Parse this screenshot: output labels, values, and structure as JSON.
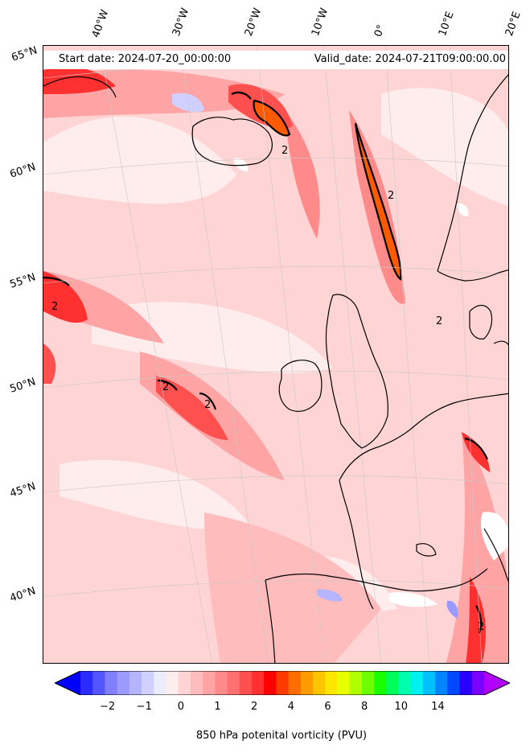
{
  "map": {
    "start_date": "Start date: 2024-07-20_00:00:00",
    "valid_date": "Valid_date: 2024-07-21T09:00:00.00",
    "longitude_labels": [
      "40°W",
      "30°W",
      "20°W",
      "10°W",
      "0°",
      "10°E",
      "20°E"
    ],
    "latitude_labels": [
      "65°N",
      "60°N",
      "55°N",
      "50°N",
      "45°N",
      "40°N"
    ],
    "contour_label": "2",
    "coastline_color": "#000000",
    "projection": "rotated polar stereographic, North Atlantic and Europe"
  },
  "colorbar": {
    "label": "850 hPa potenital vorticity (PVU)",
    "ticks": [
      "−2",
      "−1",
      "0",
      "1",
      "2",
      "4",
      "6",
      "8",
      "10",
      "14"
    ],
    "extend": "both",
    "colors": [
      "#0000ff",
      "#2b2bff",
      "#5555ff",
      "#7f7fff",
      "#9a9aff",
      "#b4b4ff",
      "#d0d0ff",
      "#ececff",
      "#ffecec",
      "#ffd4d4",
      "#ffbcbc",
      "#ffa4a4",
      "#ff8a8a",
      "#ff7070",
      "#ff5050",
      "#ff3030",
      "#ff0000",
      "#ff3a00",
      "#ff6d00",
      "#ff9a00",
      "#ffc400",
      "#ffe600",
      "#e8ff00",
      "#b0ff00",
      "#6cff00",
      "#1aff00",
      "#00ff5a",
      "#00ffaa",
      "#00f0f0",
      "#00c0ff",
      "#0084ff",
      "#0048ff",
      "#2a00ff",
      "#7a00ff",
      "#b000ff"
    ]
  }
}
